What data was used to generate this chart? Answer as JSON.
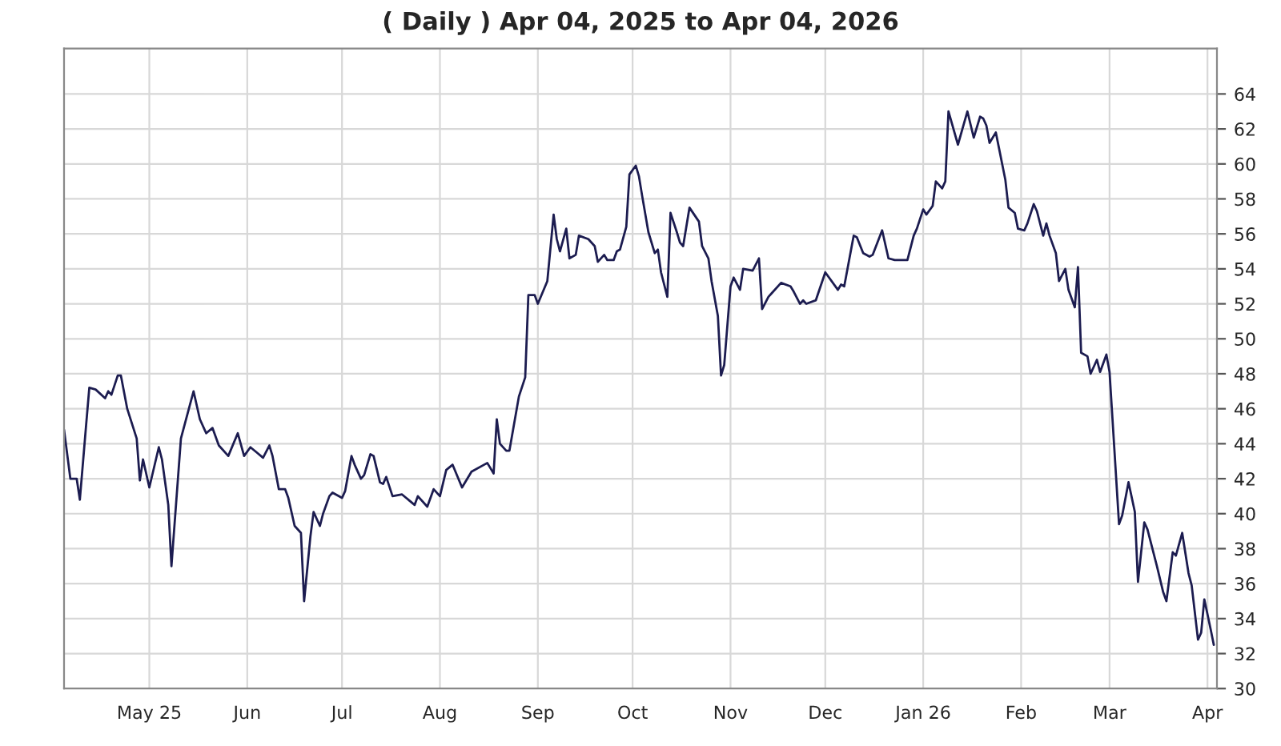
{
  "chart_data": {
    "type": "line",
    "title": "( Daily ) Apr 04, 2025 to Apr 04, 2026",
    "x": [
      "2025-04-04",
      "2025-04-06",
      "2025-04-08",
      "2025-04-09",
      "2025-04-11",
      "2025-04-12",
      "2025-04-14",
      "2025-04-17",
      "2025-04-18",
      "2025-04-19",
      "2025-04-21",
      "2025-04-22",
      "2025-04-24",
      "2025-04-27",
      "2025-04-28",
      "2025-04-29",
      "2025-05-01",
      "2025-05-04",
      "2025-05-05",
      "2025-05-07",
      "2025-05-08",
      "2025-05-11",
      "2025-05-15",
      "2025-05-17",
      "2025-05-19",
      "2025-05-21",
      "2025-05-23",
      "2025-05-26",
      "2025-05-29",
      "2025-05-31",
      "2025-06-02",
      "2025-06-04",
      "2025-06-06",
      "2025-06-08",
      "2025-06-09",
      "2025-06-11",
      "2025-06-13",
      "2025-06-14",
      "2025-06-16",
      "2025-06-18",
      "2025-06-19",
      "2025-06-21",
      "2025-06-22",
      "2025-06-24",
      "2025-06-25",
      "2025-06-27",
      "2025-06-28",
      "2025-07-01",
      "2025-07-02",
      "2025-07-04",
      "2025-07-05",
      "2025-07-07",
      "2025-07-08",
      "2025-07-10",
      "2025-07-11",
      "2025-07-13",
      "2025-07-14",
      "2025-07-15",
      "2025-07-17",
      "2025-07-20",
      "2025-07-24",
      "2025-07-25",
      "2025-07-28",
      "2025-07-30",
      "2025-08-01",
      "2025-08-03",
      "2025-08-05",
      "2025-08-08",
      "2025-08-11",
      "2025-08-16",
      "2025-08-18",
      "2025-08-19",
      "2025-08-20",
      "2025-08-22",
      "2025-08-23",
      "2025-08-26",
      "2025-08-28",
      "2025-08-29",
      "2025-08-31",
      "2025-09-01",
      "2025-09-04",
      "2025-09-06",
      "2025-09-07",
      "2025-09-08",
      "2025-09-10",
      "2025-09-11",
      "2025-09-13",
      "2025-09-14",
      "2025-09-17",
      "2025-09-19",
      "2025-09-20",
      "2025-09-22",
      "2025-09-23",
      "2025-09-25",
      "2025-09-26",
      "2025-09-27",
      "2025-09-29",
      "2025-09-30",
      "2025-10-02",
      "2025-10-03",
      "2025-10-04",
      "2025-10-06",
      "2025-10-08",
      "2025-10-09",
      "2025-10-10",
      "2025-10-12",
      "2025-10-13",
      "2025-10-15",
      "2025-10-16",
      "2025-10-17",
      "2025-10-19",
      "2025-10-22",
      "2025-10-23",
      "2025-10-25",
      "2025-10-26",
      "2025-10-28",
      "2025-10-29",
      "2025-10-30",
      "2025-11-01",
      "2025-11-02",
      "2025-11-04",
      "2025-11-05",
      "2025-11-08",
      "2025-11-10",
      "2025-11-11",
      "2025-11-13",
      "2025-11-14",
      "2025-11-17",
      "2025-11-20",
      "2025-11-21",
      "2025-11-23",
      "2025-11-24",
      "2025-11-25",
      "2025-11-28",
      "2025-12-01",
      "2025-12-05",
      "2025-12-06",
      "2025-12-07",
      "2025-12-10",
      "2025-12-11",
      "2025-12-13",
      "2025-12-15",
      "2025-12-16",
      "2025-12-19",
      "2025-12-21",
      "2025-12-23",
      "2025-12-27",
      "2025-12-29",
      "2025-12-30",
      "2026-01-01",
      "2026-01-02",
      "2026-01-04",
      "2026-01-05",
      "2026-01-07",
      "2026-01-08",
      "2026-01-09",
      "2026-01-12",
      "2026-01-15",
      "2026-01-17",
      "2026-01-19",
      "2026-01-20",
      "2026-01-21",
      "2026-01-22",
      "2026-01-24",
      "2026-01-25",
      "2026-01-27",
      "2026-01-28",
      "2026-01-30",
      "2026-01-31",
      "2026-02-02",
      "2026-02-03",
      "2026-02-05",
      "2026-02-06",
      "2026-02-08",
      "2026-02-09",
      "2026-02-10",
      "2026-02-12",
      "2026-02-13",
      "2026-02-15",
      "2026-02-16",
      "2026-02-18",
      "2026-02-19",
      "2026-02-20",
      "2026-02-22",
      "2026-02-23",
      "2026-02-25",
      "2026-02-26",
      "2026-02-28",
      "2026-03-01",
      "2026-03-04",
      "2026-03-05",
      "2026-03-07",
      "2026-03-09",
      "2026-03-10",
      "2026-03-12",
      "2026-03-13",
      "2026-03-16",
      "2026-03-18",
      "2026-03-19",
      "2026-03-21",
      "2026-03-22",
      "2026-03-24",
      "2026-03-26",
      "2026-03-27",
      "2026-03-29",
      "2026-03-30",
      "2026-03-31",
      "2026-04-02",
      "2026-04-03"
    ],
    "series": [
      {
        "color": "#1c1c50",
        "values": [
          44.8,
          42.0,
          42.0,
          40.8,
          45.1,
          47.2,
          47.1,
          46.6,
          47.0,
          46.8,
          47.9,
          47.9,
          46.0,
          44.3,
          41.9,
          43.1,
          41.5,
          43.8,
          43.1,
          40.5,
          37.0,
          44.3,
          47.0,
          45.4,
          44.6,
          44.9,
          43.9,
          43.3,
          44.6,
          43.3,
          43.8,
          43.5,
          43.2,
          43.9,
          43.3,
          41.4,
          41.4,
          40.9,
          39.3,
          38.9,
          35.0,
          38.7,
          40.1,
          39.3,
          40.0,
          41.0,
          41.2,
          40.9,
          41.3,
          43.3,
          42.8,
          42.0,
          42.2,
          43.4,
          43.3,
          41.8,
          41.7,
          42.1,
          41.0,
          41.1,
          40.5,
          41.0,
          40.4,
          41.4,
          41.0,
          42.5,
          42.8,
          41.5,
          42.4,
          42.9,
          42.3,
          45.4,
          44.0,
          43.6,
          43.6,
          46.7,
          47.8,
          52.5,
          52.5,
          52.0,
          53.3,
          57.1,
          55.7,
          55.0,
          56.3,
          54.6,
          54.8,
          55.9,
          55.7,
          55.3,
          54.4,
          54.8,
          54.5,
          54.5,
          55.0,
          55.1,
          56.4,
          59.4,
          59.9,
          59.3,
          58.2,
          56.1,
          54.9,
          55.1,
          53.8,
          52.4,
          57.2,
          56.1,
          55.5,
          55.3,
          57.5,
          56.7,
          55.3,
          54.6,
          53.3,
          51.3,
          47.9,
          48.5,
          53.0,
          53.5,
          52.8,
          54.0,
          53.9,
          54.6,
          51.7,
          52.4,
          52.6,
          53.2,
          53.0,
          52.7,
          52.0,
          52.2,
          52.0,
          52.2,
          53.8,
          52.8,
          53.1,
          53.0,
          55.9,
          55.8,
          54.9,
          54.7,
          54.8,
          56.2,
          54.6,
          54.5,
          54.5,
          55.9,
          56.3,
          57.4,
          57.1,
          57.6,
          59.0,
          58.6,
          59.0,
          63.0,
          61.1,
          63.0,
          61.5,
          62.7,
          62.6,
          62.2,
          61.2,
          61.8,
          60.9,
          59.1,
          57.5,
          57.2,
          56.3,
          56.2,
          56.6,
          57.7,
          57.3,
          55.9,
          56.6,
          55.9,
          54.9,
          53.3,
          54.0,
          52.8,
          51.8,
          54.1,
          49.2,
          49.0,
          48.0,
          48.8,
          48.1,
          49.1,
          48.1,
          39.4,
          39.9,
          41.8,
          40.1,
          36.1,
          39.5,
          39.1,
          37.0,
          35.5,
          35.0,
          37.8,
          37.6,
          38.9,
          36.6,
          35.9,
          32.8,
          33.2,
          35.1,
          33.4,
          32.5
        ]
      }
    ],
    "xlim": [
      "2025-04-04",
      "2026-04-04"
    ],
    "xticks": [
      {
        "value": "2025-05-01",
        "label": "May 25"
      },
      {
        "value": "2025-06-01",
        "label": "Jun"
      },
      {
        "value": "2025-07-01",
        "label": "Jul"
      },
      {
        "value": "2025-08-01",
        "label": "Aug"
      },
      {
        "value": "2025-09-01",
        "label": "Sep"
      },
      {
        "value": "2025-10-01",
        "label": "Oct"
      },
      {
        "value": "2025-11-01",
        "label": "Nov"
      },
      {
        "value": "2025-12-01",
        "label": "Dec"
      },
      {
        "value": "2026-01-01",
        "label": "Jan 26"
      },
      {
        "value": "2026-02-01",
        "label": "Feb"
      },
      {
        "value": "2026-03-01",
        "label": "Mar"
      },
      {
        "value": "2026-04-01",
        "label": "Apr"
      }
    ],
    "ylim": [
      30,
      66.6
    ],
    "yticks": [
      30,
      32,
      34,
      36,
      38,
      40,
      42,
      44,
      46,
      48,
      50,
      52,
      54,
      56,
      58,
      60,
      62,
      64
    ],
    "grid": true,
    "legend": false
  }
}
